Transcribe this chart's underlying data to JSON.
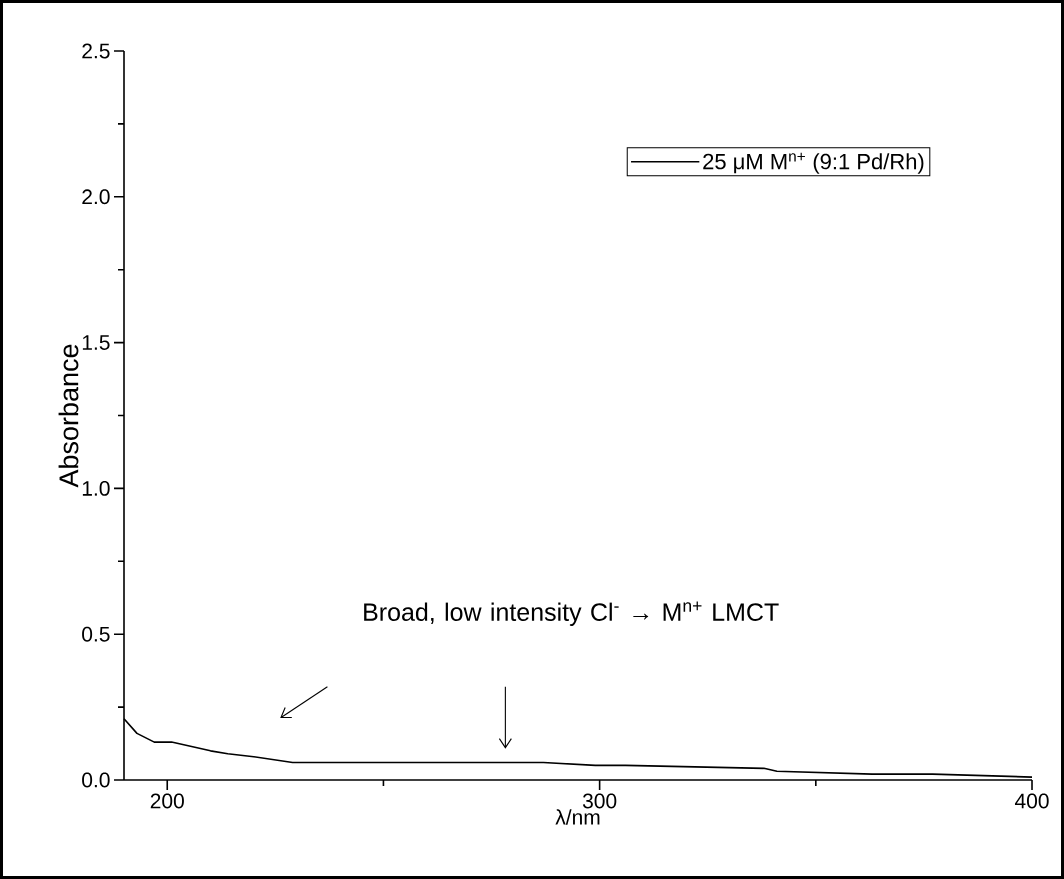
{
  "chart_data": {
    "type": "line",
    "xlabel": "λ/nm",
    "ylabel": "Absorbance",
    "x": [
      190,
      193,
      197,
      201,
      210,
      214,
      220,
      229,
      249,
      272,
      287,
      299,
      306,
      338,
      341,
      363,
      377,
      400
    ],
    "series": [
      {
        "name": "25 μM M$^{n+}$ (9:1 Pd/Rh)",
        "color": "#000000",
        "values": [
          0.21,
          0.16,
          0.13,
          0.13,
          0.1,
          0.09,
          0.08,
          0.06,
          0.06,
          0.06,
          0.06,
          0.05,
          0.05,
          0.04,
          0.03,
          0.02,
          0.02,
          0.01
        ]
      }
    ],
    "xlim": [
      190,
      400
    ],
    "ylim": [
      0,
      2.5
    ],
    "xticks": [
      200,
      300,
      400
    ],
    "yticks": [
      {
        "value": 0,
        "label": "0.0"
      },
      {
        "value": 0.5,
        "label": "0.5"
      },
      {
        "value": 1,
        "label": "1.0"
      },
      {
        "value": 1.5,
        "label": "1.5"
      },
      {
        "value": 2,
        "label": "2.0"
      },
      {
        "value": 2.5,
        "label": "2.5"
      }
    ],
    "legend": "top right",
    "marker": "none",
    "line_style": "solid",
    "annotations": [
      "Broad, low intensity Cl$^{-}$ → M$^{n+}$ LMCT"
    ]
  }
}
